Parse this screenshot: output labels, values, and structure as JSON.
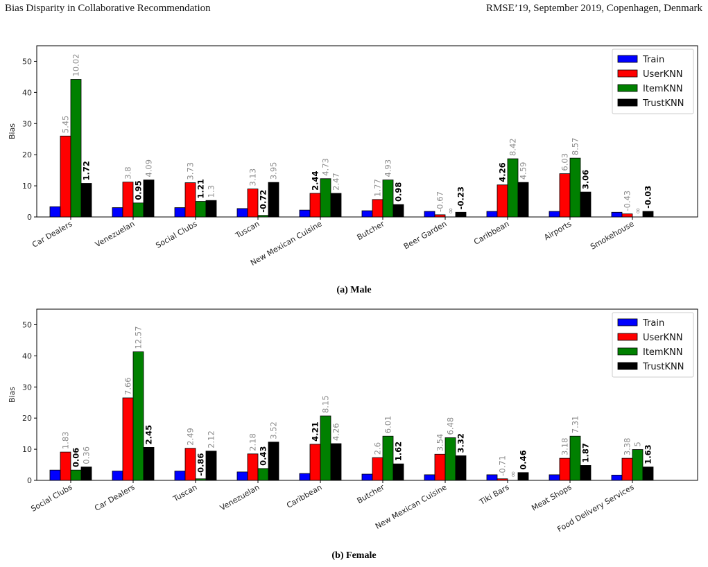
{
  "header": {
    "left": "Bias Disparity in Collaborative Recommendation",
    "right": "RMSE’19, September 2019, Copenhagen, Denmark"
  },
  "colors": {
    "Train": "#0000ff",
    "UserKNN": "#ff0000",
    "ItemKNN": "#008000",
    "TrustKNN": "#000000",
    "label_gray": "#8c8c8c",
    "label_bold": "#000000"
  },
  "chart_data": [
    {
      "type": "bar",
      "caption": "(a) Male",
      "ylabel": "Bias",
      "ylim": [
        0,
        55
      ],
      "yticks": [
        0,
        10,
        20,
        30,
        40,
        50
      ],
      "legend_position": "top-right",
      "categories": [
        "Car Dealers",
        "Venezuelan",
        "Social Clubs",
        "Tuscan",
        "New Mexican Cuisine",
        "Butcher",
        "Beer Garden",
        "Caribbean",
        "Airports",
        "Smokehouse"
      ],
      "series": [
        {
          "name": "Train",
          "values": [
            3.3,
            3.0,
            3.0,
            2.7,
            2.2,
            2.0,
            1.8,
            1.8,
            1.8,
            1.5
          ],
          "labels": []
        },
        {
          "name": "UserKNN",
          "values": [
            26.0,
            11.2,
            11.0,
            9.0,
            7.6,
            5.6,
            0.7,
            10.3,
            13.9,
            1.0
          ],
          "labels": [
            "5.45",
            "3.8",
            "3.73",
            "3.13",
            "2.44",
            "1.77",
            "-0.67",
            "4.26",
            "6.03",
            "-0.43"
          ],
          "bold": [
            false,
            false,
            false,
            false,
            true,
            false,
            false,
            true,
            false,
            false
          ]
        },
        {
          "name": "ItemKNN",
          "values": [
            44.2,
            4.5,
            5.0,
            0.5,
            12.3,
            11.9,
            0.0,
            18.7,
            18.9,
            0.0
          ],
          "labels": [
            "10.02",
            "0.95",
            "1.21",
            "-0.72",
            "4.73",
            "4.93",
            "∞",
            "8.42",
            "8.57",
            "∞"
          ],
          "bold": [
            false,
            true,
            true,
            true,
            false,
            false,
            false,
            false,
            false,
            false
          ]
        },
        {
          "name": "TrustKNN",
          "values": [
            10.8,
            11.9,
            5.3,
            11.1,
            7.6,
            4.0,
            1.5,
            11.1,
            8.0,
            1.8
          ],
          "labels": [
            "1.72",
            "4.09",
            "1.3",
            "3.95",
            "2.47",
            "0.98",
            "-0.23",
            "4.59",
            "3.06",
            "-0.03"
          ],
          "bold": [
            true,
            false,
            false,
            false,
            false,
            true,
            true,
            false,
            true,
            true
          ]
        }
      ]
    },
    {
      "type": "bar",
      "caption": "(b) Female",
      "ylabel": "Bias",
      "ylim": [
        0,
        55
      ],
      "yticks": [
        0,
        10,
        20,
        30,
        40,
        50
      ],
      "legend_position": "top-right",
      "categories": [
        "Social Clubs",
        "Car Dealers",
        "Tuscan",
        "Venezuelan",
        "Caribbean",
        "Butcher",
        "New Mexican Cuisine",
        "Tiki Bars",
        "Meat Shops",
        "Food Delivery Services"
      ],
      "series": [
        {
          "name": "Train",
          "values": [
            3.3,
            3.0,
            3.0,
            2.7,
            2.2,
            2.0,
            1.8,
            1.8,
            1.8,
            1.7
          ],
          "labels": []
        },
        {
          "name": "UserKNN",
          "values": [
            9.1,
            26.5,
            10.3,
            8.5,
            11.6,
            7.3,
            8.4,
            0.5,
            7.1,
            7.1
          ],
          "labels": [
            "1.83",
            "7.66",
            "2.49",
            "2.18",
            "4.21",
            "2.6",
            "3.54",
            "-0.71",
            "3.18",
            "3.38"
          ],
          "bold": [
            false,
            false,
            false,
            false,
            true,
            false,
            false,
            false,
            false,
            false
          ]
        },
        {
          "name": "ItemKNN",
          "values": [
            3.3,
            41.3,
            0.5,
            3.8,
            20.7,
            14.2,
            13.7,
            0.0,
            14.2,
            9.9
          ],
          "labels": [
            "0.06",
            "12.57",
            "-0.86",
            "0.43",
            "8.15",
            "6.01",
            "6.48",
            "∞",
            "7.31",
            "5"
          ],
          "bold": [
            true,
            false,
            true,
            true,
            false,
            false,
            false,
            false,
            false,
            false
          ]
        },
        {
          "name": "TrustKNN",
          "values": [
            4.3,
            10.6,
            9.4,
            12.3,
            11.8,
            5.3,
            7.9,
            2.5,
            4.8,
            4.3
          ],
          "labels": [
            "0.36",
            "2.45",
            "2.12",
            "3.52",
            "4.26",
            "1.62",
            "3.32",
            "0.46",
            "1.87",
            "1.63"
          ],
          "bold": [
            false,
            true,
            false,
            false,
            false,
            true,
            true,
            true,
            true,
            true
          ]
        }
      ]
    }
  ]
}
